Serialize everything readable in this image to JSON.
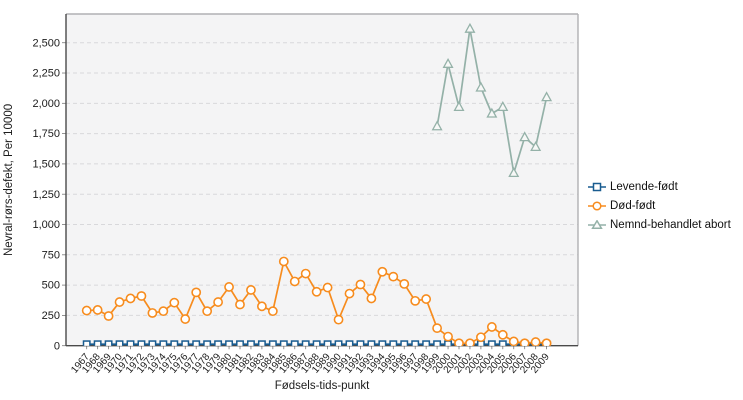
{
  "page": {
    "background_color": "#ffffff",
    "plot_background_color": "#f4f4f5",
    "gridline_color": "#d8d8db",
    "axis_line_color": "#4a4a4a",
    "border_line_color": "#b0b0b3",
    "text_color": "#1c1c1c"
  },
  "chart_data": {
    "type": "line",
    "title": "",
    "xlabel": "Fødsels-tids-punkt",
    "ylabel": "Nevral-rørs-defekt, Per 10000",
    "x": [
      1967,
      1968,
      1969,
      1970,
      1971,
      1972,
      1973,
      1974,
      1975,
      1976,
      1977,
      1978,
      1979,
      1980,
      1981,
      1982,
      1983,
      1984,
      1985,
      1986,
      1987,
      1988,
      1989,
      1990,
      1991,
      1992,
      1993,
      1994,
      1995,
      1996,
      1997,
      1998,
      1999,
      2000,
      2001,
      2002,
      2003,
      2004,
      2005,
      2006,
      2007,
      2008,
      2009
    ],
    "y_tick_labels": [
      "0",
      "250",
      "500",
      "750",
      "1,000",
      "1,250",
      "1,500",
      "1,750",
      "2,000",
      "2,250",
      "2,500"
    ],
    "ylim": [
      0,
      2737
    ],
    "grid": "horizontal dashed",
    "legend_position": "right-middle",
    "series": [
      {
        "name": "Levende-født",
        "marker": "square",
        "color": "#195c90",
        "x_start": 1967,
        "values": [
          12,
          12,
          12,
          12,
          12,
          12,
          12,
          12,
          12,
          12,
          12,
          12,
          12,
          12,
          12,
          12,
          12,
          12,
          12,
          12,
          12,
          12,
          12,
          12,
          12,
          12,
          12,
          12,
          12,
          12,
          12,
          12,
          12,
          12,
          12,
          12,
          12,
          12,
          12,
          12,
          12,
          12,
          12
        ]
      },
      {
        "name": "Død-født",
        "marker": "circle",
        "color": "#f78c1e",
        "x_start": 1967,
        "values": [
          290,
          295,
          245,
          360,
          390,
          410,
          270,
          285,
          355,
          220,
          440,
          285,
          360,
          485,
          340,
          460,
          325,
          285,
          695,
          530,
          595,
          445,
          480,
          215,
          430,
          505,
          390,
          610,
          570,
          510,
          370,
          385,
          145,
          75,
          20,
          20,
          70,
          155,
          90,
          35,
          20,
          30,
          20
        ]
      },
      {
        "name": "Nemnd-behandlet abort",
        "marker": "triangle",
        "color": "#94b1a8",
        "x_start": 1999,
        "values": [
          1810,
          2325,
          1970,
          2615,
          2130,
          1915,
          1970,
          1425,
          1720,
          1640,
          2050
        ]
      }
    ]
  }
}
